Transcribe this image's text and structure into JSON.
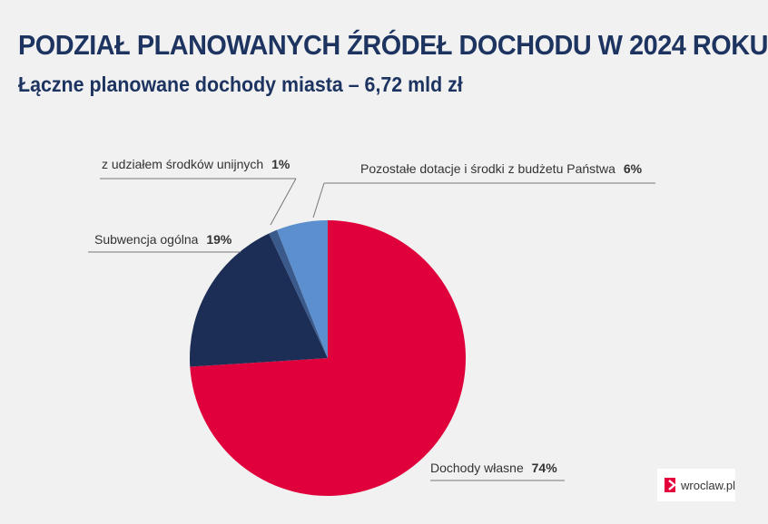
{
  "title": "PODZIAŁ PLANOWANYCH ŹRÓDEŁ DOCHODU W 2024 ROKU",
  "subtitle": "Łączne planowane dochody miasta – 6,72 mld zł",
  "logo": {
    "text": "wroclaw.pl",
    "icon": "chevron-right-icon",
    "color": "#e4003b"
  },
  "chart_data": {
    "type": "pie",
    "title": "PODZIAŁ PLANOWANYCH ŹRÓDEŁ DOCHODU W 2024 ROKU",
    "subtitle": "Łączne planowane dochody miasta – 6,72 mld zł",
    "unit": "%",
    "start_angle_deg": 0,
    "direction": "clockwise",
    "slices": [
      {
        "label": "Dochody własne",
        "value": 74,
        "value_label": "74%",
        "color": "#e0003c"
      },
      {
        "label": "Subwencja ogólna",
        "value": 19,
        "value_label": "19%",
        "color": "#1c2e55"
      },
      {
        "label": "z udziałem środków unijnych",
        "value": 1,
        "value_label": "1%",
        "color": "#3a5a8c"
      },
      {
        "label": "Pozostałe dotacje i środki z budżetu Państwa",
        "value": 6,
        "value_label": "6%",
        "color": "#5b8fcd"
      }
    ]
  }
}
